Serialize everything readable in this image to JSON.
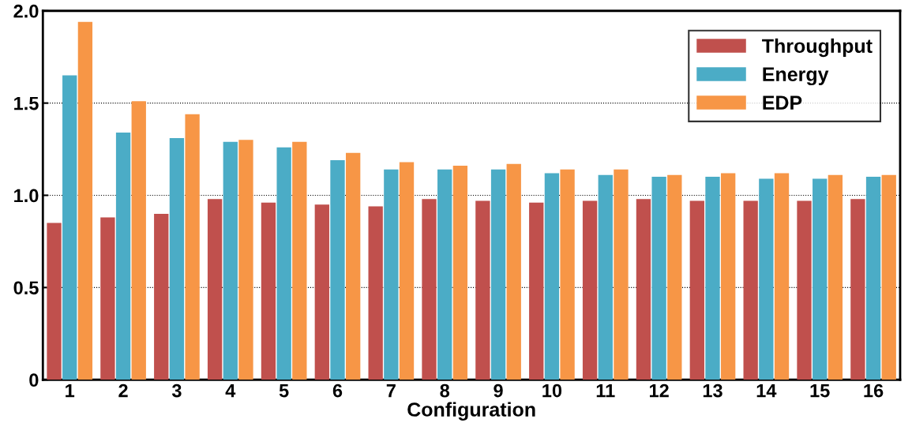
{
  "chart_data": {
    "type": "bar",
    "xlabel": "Configuration",
    "categories": [
      "1",
      "2",
      "3",
      "4",
      "5",
      "6",
      "7",
      "8",
      "9",
      "10",
      "11",
      "12",
      "13",
      "14",
      "15",
      "16"
    ],
    "series": [
      {
        "name": "Throughput",
        "color": "#c0504d",
        "values": [
          0.85,
          0.88,
          0.9,
          0.98,
          0.96,
          0.95,
          0.94,
          0.98,
          0.97,
          0.96,
          0.97,
          0.98,
          0.97,
          0.97,
          0.97,
          0.98
        ]
      },
      {
        "name": "Energy",
        "color": "#4bacc6",
        "values": [
          1.65,
          1.34,
          1.31,
          1.29,
          1.26,
          1.19,
          1.14,
          1.14,
          1.14,
          1.12,
          1.11,
          1.1,
          1.1,
          1.09,
          1.09,
          1.1
        ]
      },
      {
        "name": "EDP",
        "color": "#f79646",
        "values": [
          1.94,
          1.51,
          1.44,
          1.3,
          1.29,
          1.23,
          1.18,
          1.16,
          1.17,
          1.14,
          1.14,
          1.11,
          1.12,
          1.12,
          1.11,
          1.11
        ]
      }
    ],
    "ylim": [
      0,
      2.0
    ],
    "yticks": [
      0,
      0.5,
      {
        "value": 1.0,
        "label": "1.0"
      },
      1.5,
      {
        "value": 2.0,
        "label": "2.0"
      }
    ],
    "grid": "y",
    "legend": "top right"
  }
}
